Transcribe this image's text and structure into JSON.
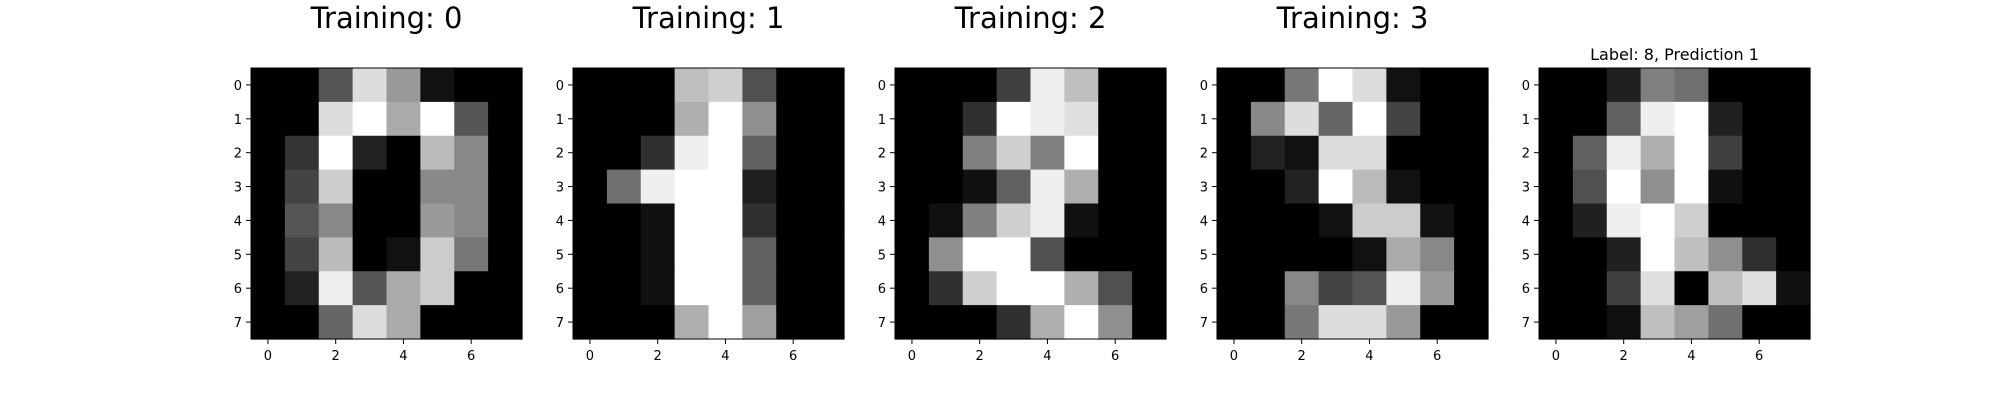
{
  "chart_data": [
    {
      "type": "heatmap",
      "title": "Training: 0",
      "xticks": [
        0,
        2,
        4,
        6
      ],
      "yticks": [
        0,
        1,
        2,
        3,
        4,
        5,
        6,
        7
      ],
      "xlim": [
        -0.5,
        7.5
      ],
      "ylim": [
        7.5,
        -0.5
      ],
      "colormap": "gray",
      "values": [
        [
          0,
          0,
          5,
          13,
          9,
          1,
          0,
          0
        ],
        [
          0,
          0,
          13,
          15,
          10,
          15,
          5,
          0
        ],
        [
          0,
          3,
          15,
          2,
          0,
          11,
          8,
          0
        ],
        [
          0,
          4,
          12,
          0,
          0,
          8,
          8,
          0
        ],
        [
          0,
          5,
          8,
          0,
          0,
          9,
          8,
          0
        ],
        [
          0,
          4,
          11,
          0,
          1,
          12,
          7,
          0
        ],
        [
          0,
          2,
          14,
          5,
          10,
          12,
          0,
          0
        ],
        [
          0,
          0,
          6,
          13,
          10,
          0,
          0,
          0
        ]
      ]
    },
    {
      "type": "heatmap",
      "title": "Training: 1",
      "xticks": [
        0,
        2,
        4,
        6
      ],
      "yticks": [
        0,
        1,
        2,
        3,
        4,
        5,
        6,
        7
      ],
      "xlim": [
        -0.5,
        7.5
      ],
      "ylim": [
        7.5,
        -0.5
      ],
      "colormap": "gray",
      "values": [
        [
          0,
          0,
          0,
          12,
          13,
          5,
          0,
          0
        ],
        [
          0,
          0,
          0,
          11,
          16,
          9,
          0,
          0
        ],
        [
          0,
          0,
          3,
          15,
          16,
          6,
          0,
          0
        ],
        [
          0,
          7,
          15,
          16,
          16,
          2,
          0,
          0
        ],
        [
          0,
          0,
          1,
          16,
          16,
          3,
          0,
          0
        ],
        [
          0,
          0,
          1,
          16,
          16,
          6,
          0,
          0
        ],
        [
          0,
          0,
          1,
          16,
          16,
          6,
          0,
          0
        ],
        [
          0,
          0,
          0,
          11,
          16,
          10,
          0,
          0
        ]
      ]
    },
    {
      "type": "heatmap",
      "title": "Training: 2",
      "xticks": [
        0,
        2,
        4,
        6
      ],
      "yticks": [
        0,
        1,
        2,
        3,
        4,
        5,
        6,
        7
      ],
      "xlim": [
        -0.5,
        7.5
      ],
      "ylim": [
        7.5,
        -0.5
      ],
      "colormap": "gray",
      "values": [
        [
          0,
          0,
          0,
          4,
          15,
          12,
          0,
          0
        ],
        [
          0,
          0,
          3,
          16,
          15,
          14,
          0,
          0
        ],
        [
          0,
          0,
          8,
          13,
          8,
          16,
          0,
          0
        ],
        [
          0,
          0,
          1,
          6,
          15,
          11,
          0,
          0
        ],
        [
          0,
          1,
          8,
          13,
          15,
          1,
          0,
          0
        ],
        [
          0,
          9,
          16,
          16,
          5,
          0,
          0,
          0
        ],
        [
          0,
          3,
          13,
          16,
          16,
          11,
          5,
          0
        ],
        [
          0,
          0,
          0,
          3,
          11,
          16,
          9,
          0
        ]
      ]
    },
    {
      "type": "heatmap",
      "title": "Training: 3",
      "xticks": [
        0,
        2,
        4,
        6
      ],
      "yticks": [
        0,
        1,
        2,
        3,
        4,
        5,
        6,
        7
      ],
      "xlim": [
        -0.5,
        7.5
      ],
      "ylim": [
        7.5,
        -0.5
      ],
      "colormap": "gray",
      "values": [
        [
          0,
          0,
          7,
          15,
          13,
          1,
          0,
          0
        ],
        [
          0,
          8,
          13,
          6,
          15,
          4,
          0,
          0
        ],
        [
          0,
          2,
          1,
          13,
          13,
          0,
          0,
          0
        ],
        [
          0,
          0,
          2,
          15,
          11,
          1,
          0,
          0
        ],
        [
          0,
          0,
          0,
          1,
          12,
          12,
          1,
          0
        ],
        [
          0,
          0,
          0,
          0,
          1,
          10,
          8,
          0
        ],
        [
          0,
          0,
          8,
          4,
          5,
          14,
          9,
          0
        ],
        [
          0,
          0,
          7,
          13,
          13,
          9,
          0,
          0
        ]
      ]
    },
    {
      "type": "heatmap",
      "title": "Label: 8, Prediction 1",
      "xticks": [
        0,
        2,
        4,
        6
      ],
      "yticks": [
        0,
        1,
        2,
        3,
        4,
        5,
        6,
        7
      ],
      "xlim": [
        -0.5,
        7.5
      ],
      "ylim": [
        7.5,
        -0.5
      ],
      "colormap": "gray",
      "values": [
        [
          0,
          0,
          2,
          8,
          7,
          0,
          0,
          0
        ],
        [
          0,
          0,
          6,
          15,
          16,
          2,
          0,
          0
        ],
        [
          0,
          6,
          15,
          11,
          16,
          4,
          0,
          0
        ],
        [
          0,
          5,
          16,
          9,
          16,
          1,
          0,
          0
        ],
        [
          0,
          2,
          15,
          16,
          13,
          0,
          0,
          0
        ],
        [
          0,
          0,
          2,
          16,
          12,
          9,
          3,
          0
        ],
        [
          0,
          0,
          4,
          14,
          0,
          12,
          14,
          1
        ],
        [
          0,
          0,
          1,
          12,
          10,
          7,
          0,
          0
        ]
      ]
    }
  ]
}
